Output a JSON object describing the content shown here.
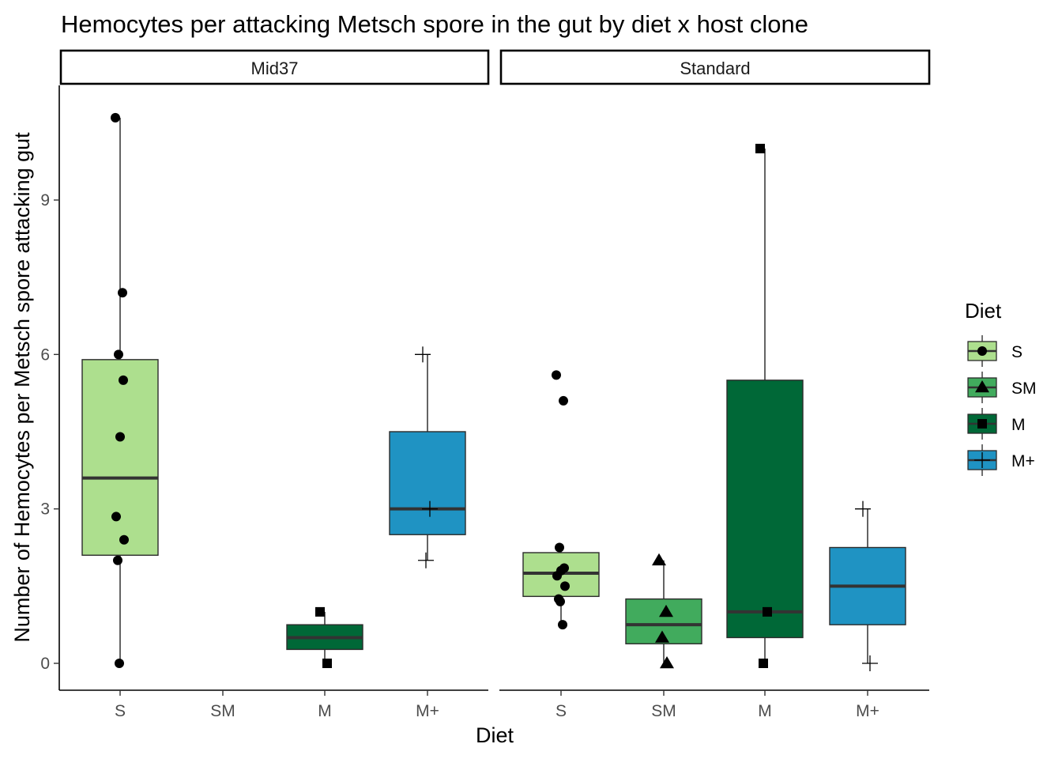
{
  "chart_data": {
    "type": "boxplot",
    "title": "Hemocytes per attacking Metsch spore in the gut by diet x host clone",
    "xlabel": "Diet",
    "ylabel": "Number of Hemocytes per Metsch spore attacking gut",
    "categories": [
      "S",
      "SM",
      "M",
      "M+"
    ],
    "y_ticks": [
      0,
      3,
      6,
      9
    ],
    "ylim": [
      -0.5,
      11.2
    ],
    "colors": {
      "S": "#addf8e",
      "SM": "#41ab5d",
      "M": "#006837",
      "M+": "#1f93c3"
    },
    "legend": {
      "title": "Diet",
      "placement": "right",
      "items": [
        {
          "label": "S",
          "shape": "circle"
        },
        {
          "label": "SM",
          "shape": "triangle"
        },
        {
          "label": "M",
          "shape": "square"
        },
        {
          "label": "M+",
          "shape": "plus"
        }
      ]
    },
    "panels": [
      {
        "name": "Mid37",
        "boxes": [
          {
            "category": "S",
            "min": 0,
            "q1": 2.1,
            "median": 3.6,
            "q3": 5.9,
            "max": 10.6,
            "points": [
              10.6,
              7.2,
              6.0,
              5.5,
              4.4,
              2.85,
              2.4,
              2.0,
              0
            ]
          },
          {
            "category": "M",
            "min": 0,
            "q1": 0.27,
            "median": 0.5,
            "q3": 0.75,
            "max": 1.0,
            "points": [
              1.0,
              0
            ]
          },
          {
            "category": "M+",
            "min": 2.0,
            "q1": 2.5,
            "median": 3.0,
            "q3": 4.5,
            "max": 6.0,
            "points": [
              6.0,
              3.0,
              2.0
            ]
          }
        ]
      },
      {
        "name": "Standard",
        "boxes": [
          {
            "category": "S",
            "min": 0.75,
            "q1": 1.3,
            "median": 1.75,
            "q3": 2.15,
            "max": 2.25,
            "points": [
              5.6,
              5.1,
              2.25,
              1.85,
              1.8,
              1.7,
              1.5,
              1.25,
              1.2,
              0.75
            ]
          },
          {
            "category": "SM",
            "min": 0,
            "q1": 0.38,
            "median": 0.75,
            "q3": 1.25,
            "max": 2.0,
            "points": [
              2.0,
              1.0,
              0.5,
              0
            ]
          },
          {
            "category": "M",
            "min": 0,
            "q1": 0.5,
            "median": 1.0,
            "q3": 5.5,
            "max": 10.0,
            "points": [
              10.0,
              1.0,
              0
            ]
          },
          {
            "category": "M+",
            "min": 0,
            "q1": 0.75,
            "median": 1.5,
            "q3": 2.25,
            "max": 3.0,
            "points": [
              3.0,
              0
            ]
          }
        ]
      }
    ]
  }
}
